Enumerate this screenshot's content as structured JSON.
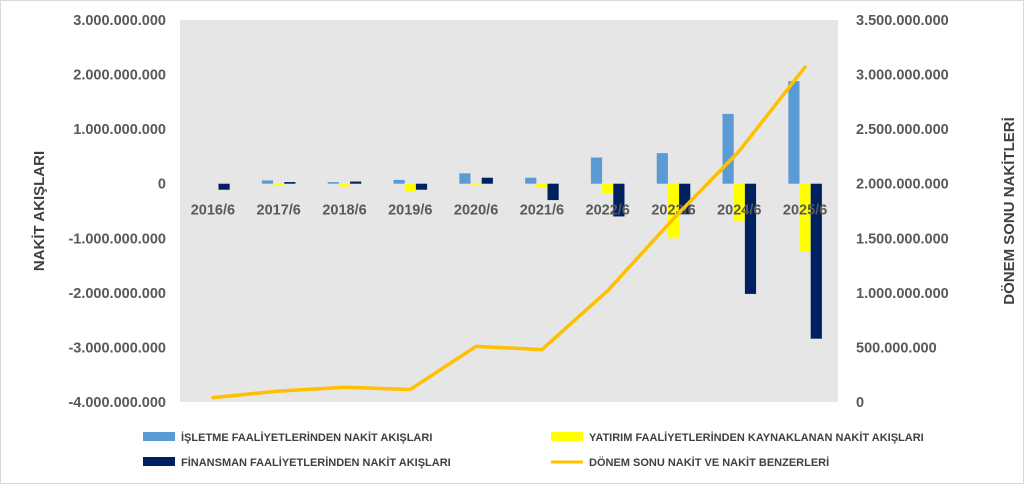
{
  "chart_data": {
    "type": "bar",
    "combo": "bar+line",
    "categories": [
      "2016/6",
      "2017/6",
      "2018/6",
      "2019/6",
      "2020/6",
      "2021/6",
      "2022/6",
      "2023/6",
      "2024/6",
      "2025/6"
    ],
    "series": [
      {
        "name": "İŞLETME FAALİYETLERİNDEN NAKİT AKIŞLARI",
        "type": "bar",
        "axis": "left",
        "color": "#5B9BD5",
        "values": [
          0,
          60000000,
          30000000,
          70000000,
          190000000,
          110000000,
          480000000,
          560000000,
          1280000000,
          1880000000
        ]
      },
      {
        "name": "YATIRIM FAALİYETLERİNDEN KAYNAKLANAN NAKİT AKIŞLARI",
        "type": "bar",
        "axis": "left",
        "color": "#FFFF00",
        "values": [
          0,
          -40000000,
          -50000000,
          -150000000,
          -20000000,
          -60000000,
          -170000000,
          -1000000000,
          -680000000,
          -1250000000
        ]
      },
      {
        "name": "FİNANSMAN FAALİYETLERİNDEN NAKİT AKIŞLARI",
        "type": "bar",
        "axis": "left",
        "color": "#002060",
        "values": [
          -110000000,
          30000000,
          40000000,
          -110000000,
          110000000,
          -300000000,
          -600000000,
          -560000000,
          -2020000000,
          -2840000000
        ]
      },
      {
        "name": "DÖNEM SONU NAKİT VE NAKİT BENZERLERİ",
        "type": "line",
        "axis": "right",
        "color": "#FFC000",
        "values": [
          40000000,
          100000000,
          135000000,
          115000000,
          510000000,
          480000000,
          1020000000,
          1680000000,
          2300000000,
          3070000000
        ]
      }
    ],
    "left_axis": {
      "title": "NAKİT AKIŞLARI",
      "ylim": [
        -4000000000,
        3000000000
      ],
      "ticks": [
        3000000000,
        2000000000,
        1000000000,
        0,
        -1000000000,
        -2000000000,
        -3000000000,
        -4000000000
      ],
      "tick_labels": [
        "3.000.000.000",
        "2.000.000.000",
        "1.000.000.000",
        "0",
        "-1.000.000.000",
        "-2.000.000.000",
        "-3.000.000.000",
        "-4.000.000.000"
      ]
    },
    "right_axis": {
      "title": "DÖNEM SONU NAKİTLERİ",
      "ylim": [
        0,
        3500000000
      ],
      "ticks": [
        3500000000,
        3000000000,
        2500000000,
        2000000000,
        1500000000,
        1000000000,
        500000000,
        0
      ],
      "tick_labels": [
        "3.500.000.000",
        "3.000.000.000",
        "2.500.000.000",
        "2.000.000.000",
        "1.500.000.000",
        "1.000.000.000",
        "500.000.000",
        "0"
      ]
    },
    "grid": false,
    "legend_position": "bottom",
    "plot_background": "#E7E6E6"
  }
}
